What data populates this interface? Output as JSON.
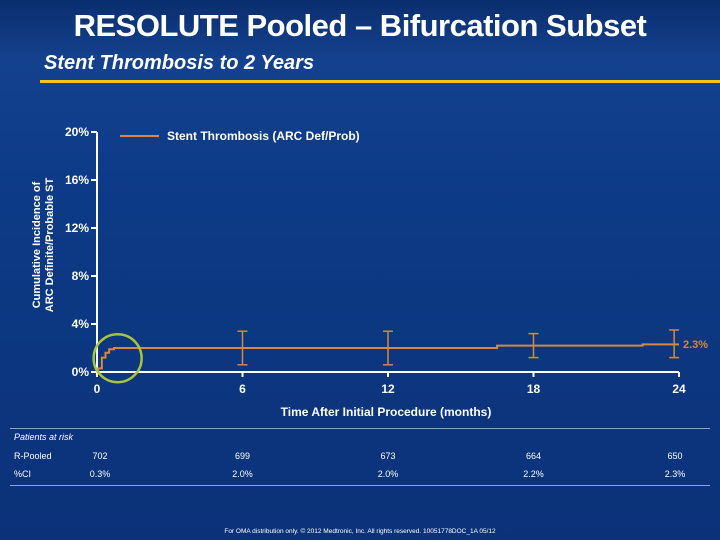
{
  "header": {
    "title": "RESOLUTE Pooled – Bifurcation Subset",
    "subtitle": "Stent Thrombosis to 2 Years"
  },
  "chart_data": {
    "type": "line",
    "ylabel_line1": "Cumulative Incidence of",
    "ylabel_line2": "ARC Definite/Probable ST",
    "xlabel": "Time After Initial Procedure (months)",
    "yticks": [
      "0%",
      "4%",
      "8%",
      "12%",
      "16%",
      "20%"
    ],
    "ytick_values": [
      0,
      4,
      8,
      12,
      16,
      20
    ],
    "xticks": [
      "0",
      "6",
      "12",
      "18",
      "24"
    ],
    "xtick_values": [
      0,
      6,
      12,
      18,
      24
    ],
    "xlim": [
      0,
      24
    ],
    "ylim": [
      0,
      20
    ],
    "legend": "Stent Thrombosis (ARC Def/Prob)",
    "end_label": "2.3%",
    "colors": {
      "line": "#d9873a",
      "highlight": "#a8c43a",
      "axis": "#ffffff"
    },
    "series": [
      {
        "step_points": [
          [
            0,
            0
          ],
          [
            0.05,
            0.3
          ],
          [
            0.2,
            1.2
          ],
          [
            0.35,
            1.6
          ],
          [
            0.5,
            1.9
          ],
          [
            0.7,
            2.0
          ],
          [
            16.5,
            2.0
          ],
          [
            16.5,
            2.2
          ],
          [
            22.5,
            2.2
          ],
          [
            22.5,
            2.3
          ],
          [
            24,
            2.3
          ]
        ],
        "error_bars": [
          {
            "x": 6,
            "y": 2.0,
            "low": 0.6,
            "high": 3.4
          },
          {
            "x": 12,
            "y": 2.0,
            "low": 0.6,
            "high": 3.4
          },
          {
            "x": 18,
            "y": 2.2,
            "low": 1.2,
            "high": 3.2
          },
          {
            "x": 23.8,
            "y": 2.3,
            "low": 1.2,
            "high": 3.5
          }
        ]
      }
    ]
  },
  "risk_table": {
    "title": "Patients at risk",
    "rows": [
      {
        "label": "R-Pooled",
        "values": [
          "702",
          "699",
          "673",
          "664",
          "650"
        ]
      },
      {
        "label": "%CI",
        "values": [
          "0.3%",
          "2.0%",
          "2.0%",
          "2.2%",
          "2.3%"
        ]
      }
    ]
  },
  "footer": "For OMA distribution only. © 2012 Medtronic, Inc. All rights reserved. 10051778DOC_1A 05/12"
}
